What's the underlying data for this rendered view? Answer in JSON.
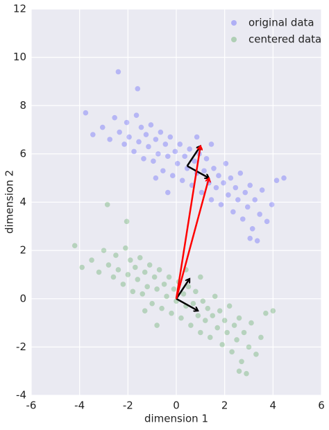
{
  "chart_data": {
    "type": "scatter",
    "xlabel": "dimension 1",
    "ylabel": "dimension 2",
    "xlim": [
      -6,
      6
    ],
    "ylim": [
      -4,
      12
    ],
    "xticks": [
      -6,
      -4,
      -2,
      0,
      2,
      4,
      6
    ],
    "yticks": [
      -4,
      -2,
      0,
      2,
      4,
      6,
      8,
      10,
      12
    ],
    "grid": true,
    "legend": "upper right",
    "series": [
      {
        "name": "original data",
        "color": "#0000ff",
        "x": [
          -3.05,
          -2.75,
          -2.55,
          -2.35,
          -2.15,
          -2.05,
          -1.95,
          -1.75,
          -1.65,
          -1.55,
          -1.45,
          -1.35,
          -1.25,
          -1.15,
          -1.05,
          -0.95,
          -0.85,
          -0.75,
          -0.65,
          -0.55,
          -0.45,
          -0.35,
          -0.25,
          -0.15,
          -0.05,
          0.05,
          0.15,
          0.25,
          0.35,
          0.45,
          0.55,
          0.65,
          0.75,
          0.85,
          0.95,
          1.05,
          1.15,
          1.25,
          1.35,
          1.45,
          1.55,
          1.65,
          1.75,
          1.85,
          1.95,
          2.05,
          2.15,
          2.25,
          2.35,
          2.45,
          2.55,
          2.65,
          2.75,
          2.85,
          2.95,
          3.05,
          3.15,
          3.25,
          3.45,
          3.55,
          3.75,
          3.95,
          4.15,
          4.45,
          3.35,
          3.05,
          -0.35,
          0.85,
          -0.85,
          1.45,
          -2.4,
          -1.6,
          -3.45,
          -3.75
        ],
        "values": [
          7.1,
          6.6,
          7.5,
          6.9,
          6.4,
          7.3,
          6.7,
          6.1,
          7.6,
          6.5,
          7.1,
          5.8,
          6.8,
          6.3,
          7.2,
          5.7,
          6.6,
          6.0,
          6.9,
          5.3,
          6.4,
          5.9,
          6.7,
          5.1,
          6.1,
          5.6,
          6.4,
          4.9,
          5.9,
          5.4,
          6.2,
          4.7,
          5.7,
          5.2,
          6.0,
          4.4,
          5.3,
          5.8,
          4.8,
          4.1,
          5.4,
          4.6,
          5.1,
          3.9,
          4.8,
          5.6,
          4.3,
          5.0,
          3.6,
          4.6,
          4.1,
          5.2,
          3.3,
          4.4,
          3.8,
          4.7,
          2.9,
          4.1,
          3.5,
          4.5,
          3.2,
          3.9,
          4.9,
          5.0,
          2.4,
          2.5,
          4.4,
          6.7,
          5.0,
          6.4,
          9.4,
          8.7,
          6.8,
          7.7
        ]
      },
      {
        "name": "centered data",
        "color": "#008000",
        "x": [
          -3.5,
          -3.2,
          -3.0,
          -2.8,
          -2.6,
          -2.5,
          -2.4,
          -2.2,
          -2.1,
          -2.0,
          -1.9,
          -1.8,
          -1.7,
          -1.6,
          -1.5,
          -1.4,
          -1.3,
          -1.2,
          -1.1,
          -1.0,
          -0.9,
          -0.8,
          -0.7,
          -0.6,
          -0.5,
          -0.4,
          -0.3,
          -0.2,
          -0.1,
          0.0,
          0.1,
          0.2,
          0.3,
          0.4,
          0.5,
          0.6,
          0.7,
          0.8,
          0.9,
          1.0,
          1.1,
          1.2,
          1.3,
          1.4,
          1.5,
          1.6,
          1.7,
          1.8,
          1.9,
          2.0,
          2.1,
          2.2,
          2.3,
          2.4,
          2.5,
          2.6,
          2.7,
          2.8,
          3.0,
          3.1,
          3.3,
          3.5,
          3.7,
          4.0,
          2.9,
          2.6,
          -0.8,
          0.4,
          -1.3,
          1.0,
          -2.85,
          -2.05,
          -3.9,
          -4.2
        ],
        "values": [
          1.6,
          1.1,
          2.0,
          1.4,
          0.9,
          1.8,
          1.2,
          0.6,
          2.1,
          1.0,
          1.6,
          0.3,
          1.3,
          0.8,
          1.7,
          0.2,
          1.1,
          0.5,
          1.4,
          -0.2,
          0.9,
          0.4,
          1.2,
          -0.4,
          0.6,
          0.1,
          0.9,
          -0.6,
          0.4,
          -0.1,
          0.7,
          -0.8,
          0.2,
          -0.3,
          0.5,
          -1.1,
          -0.2,
          0.3,
          -0.7,
          -1.4,
          -0.1,
          -0.9,
          -0.4,
          -1.6,
          -0.7,
          0.1,
          -1.2,
          -0.5,
          -1.9,
          -0.9,
          -1.4,
          -0.3,
          -2.2,
          -1.1,
          -1.7,
          -0.8,
          -2.6,
          -1.4,
          -2.0,
          -1.0,
          -2.3,
          -1.6,
          -0.6,
          -0.5,
          -3.1,
          -3.0,
          -1.1,
          1.2,
          -0.5,
          0.9,
          3.9,
          3.2,
          1.3,
          2.2
        ]
      }
    ],
    "arrows": [
      {
        "color": "#000000",
        "x": [
          0,
          0.55
        ],
        "y": [
          0,
          0.83
        ]
      },
      {
        "color": "#000000",
        "x": [
          0,
          0.9
        ],
        "y": [
          0,
          -0.5
        ]
      },
      {
        "color": "#000000",
        "x": [
          0.45,
          1.0
        ],
        "y": [
          5.5,
          6.33
        ]
      },
      {
        "color": "#000000",
        "x": [
          0.45,
          1.35
        ],
        "y": [
          5.5,
          5.0
        ]
      },
      {
        "color": "#ff0000",
        "x": [
          0,
          1.0
        ],
        "y": [
          0,
          6.33
        ]
      },
      {
        "color": "#ff0000",
        "x": [
          0,
          1.35
        ],
        "y": [
          0,
          5.0
        ]
      }
    ]
  }
}
